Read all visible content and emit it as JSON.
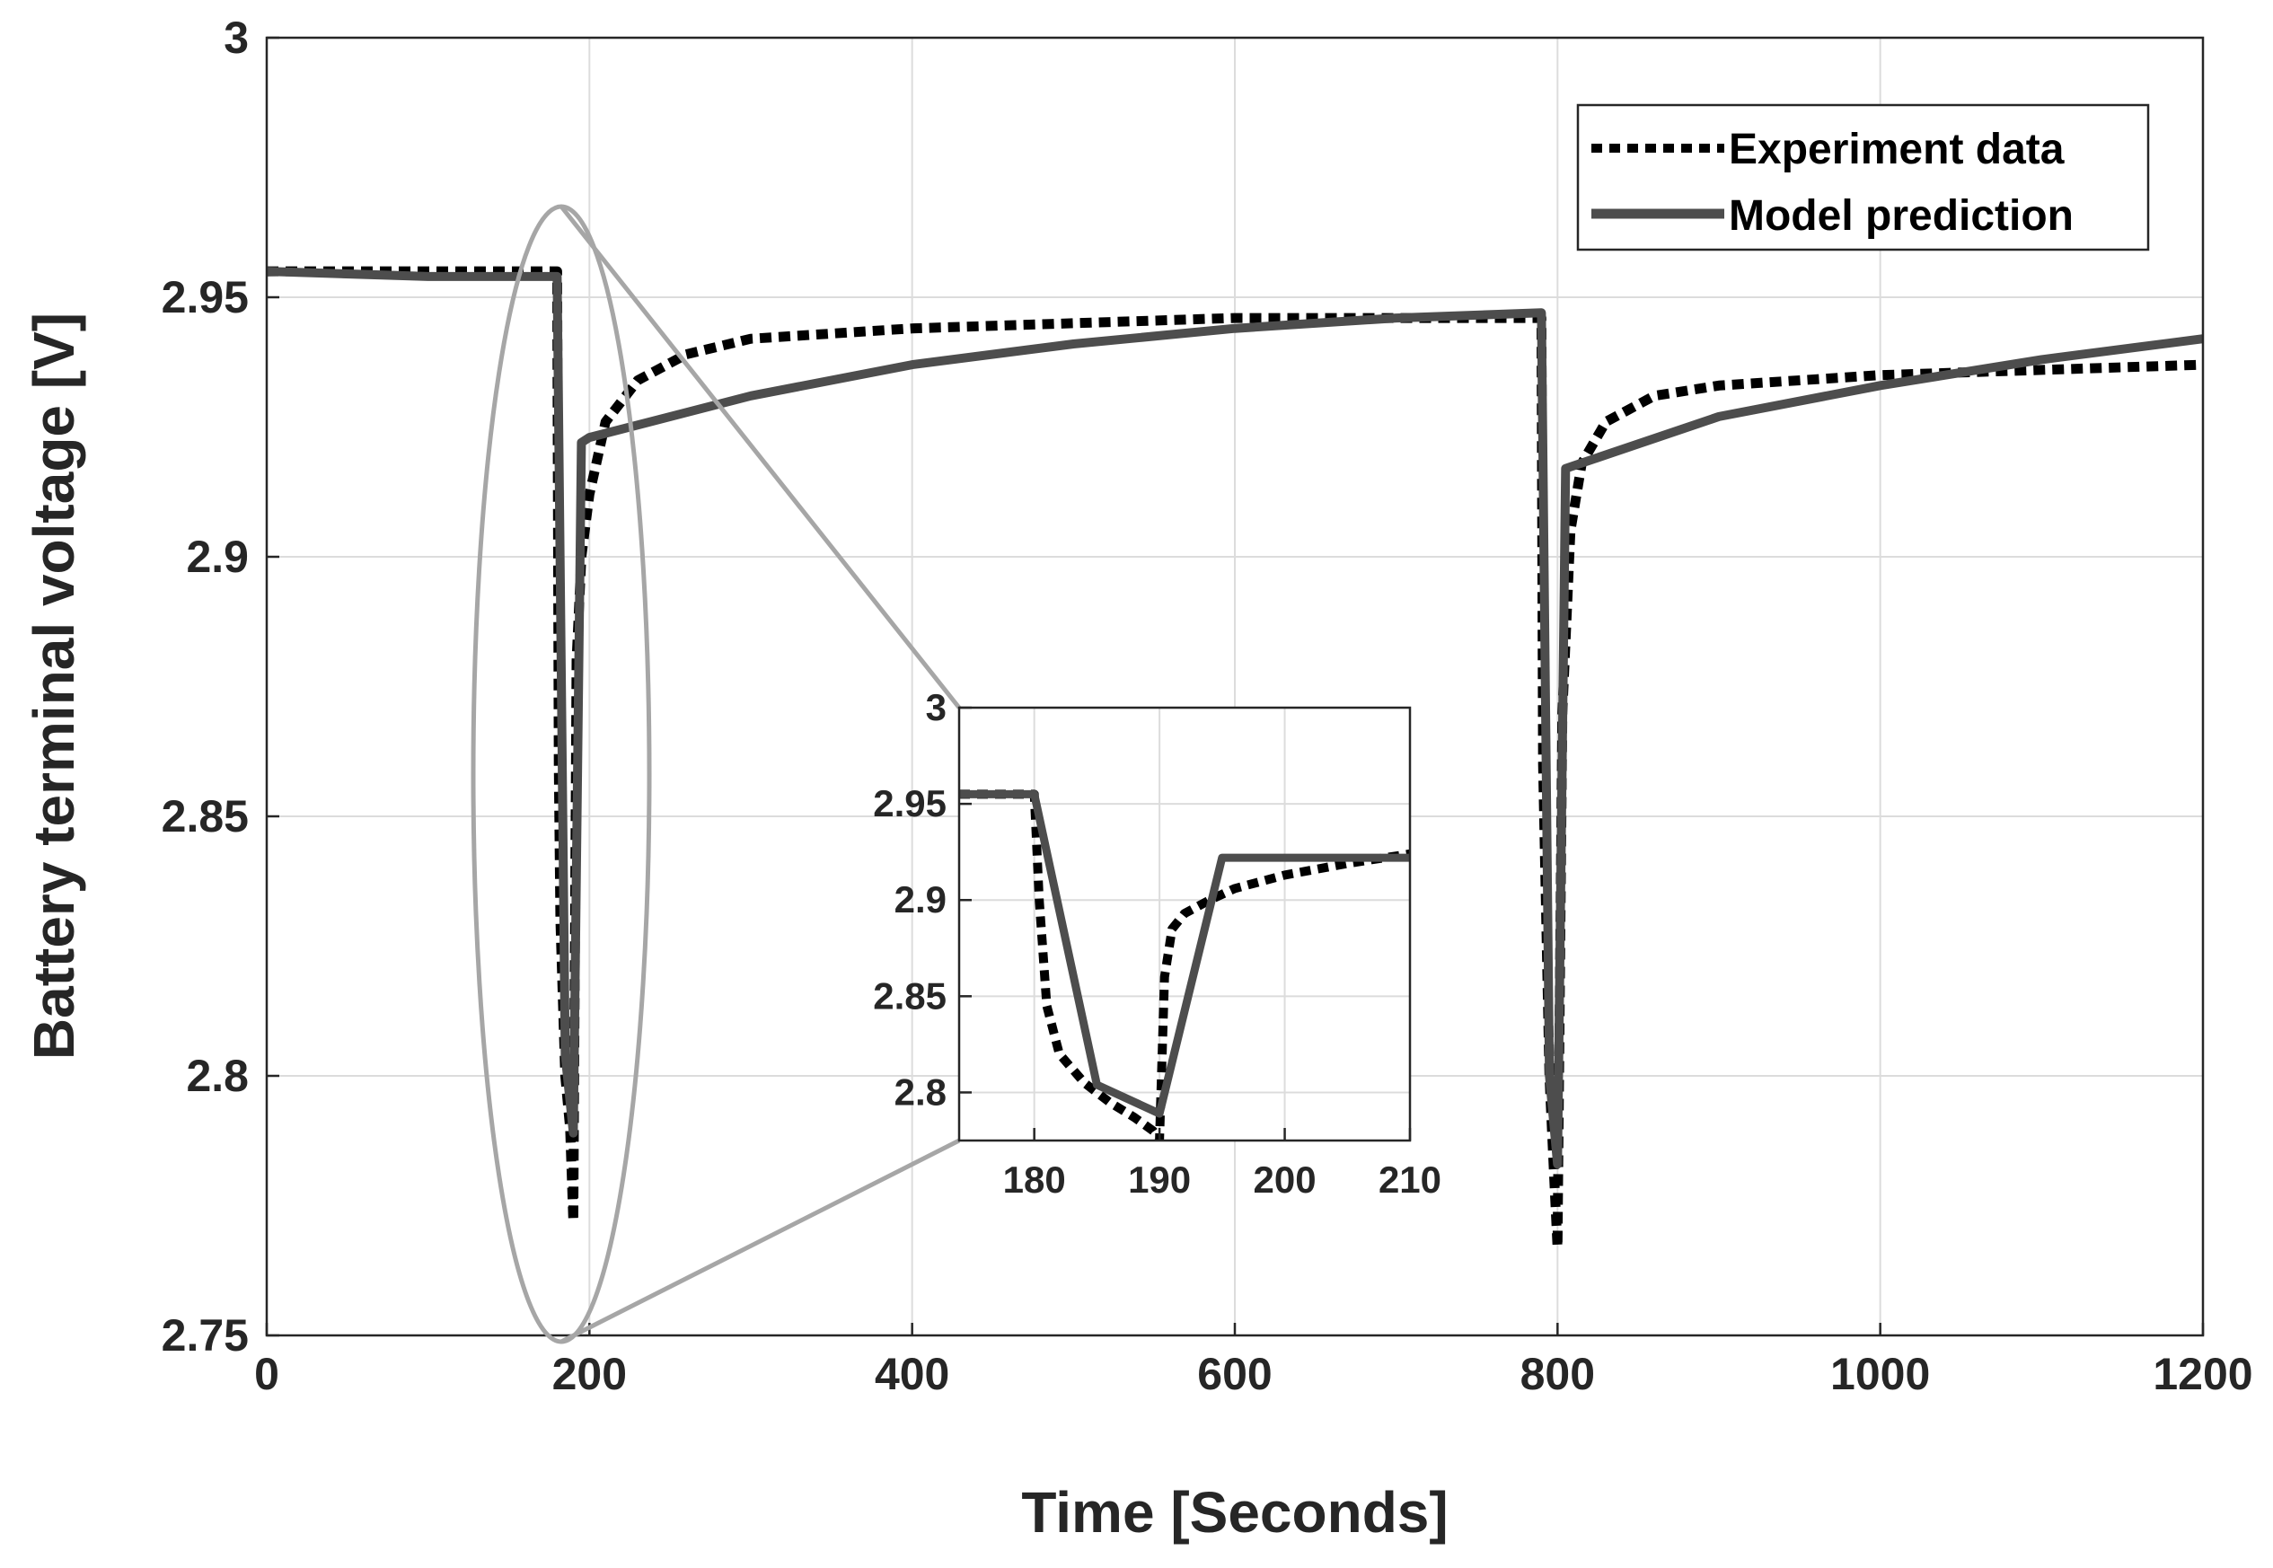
{
  "chart_data": [
    {
      "type": "line",
      "title": "",
      "xlabel": "Time [Seconds]",
      "ylabel": "Battery terminal voltage [V]",
      "xlim": [
        0,
        1200
      ],
      "ylim": [
        2.75,
        3.0
      ],
      "xticks": [
        0,
        200,
        400,
        600,
        800,
        1000,
        1200
      ],
      "xtick_labels": [
        "0",
        "200",
        "400",
        "600",
        "800",
        "1000",
        "1200"
      ],
      "yticks": [
        2.75,
        2.8,
        2.85,
        2.9,
        2.95,
        3.0
      ],
      "ytick_labels": [
        "2.75",
        "2.8",
        "2.85",
        "2.9",
        "2.95",
        "3"
      ],
      "grid": true,
      "legend": {
        "position": "top-right",
        "entries": [
          "Experiment data",
          "Model prediction"
        ]
      },
      "series": [
        {
          "name": "Experiment data",
          "style": "dotted",
          "color": "#000000",
          "x": [
            0,
            100,
            178,
            180,
            181,
            182,
            185,
            188,
            190,
            192,
            195,
            200,
            210,
            230,
            260,
            300,
            400,
            500,
            600,
            700,
            788,
            790,
            791,
            795,
            798,
            800,
            803,
            808,
            815,
            830,
            860,
            900,
            1000,
            1100,
            1200
          ],
          "y": [
            2.955,
            2.955,
            2.955,
            2.955,
            2.86,
            2.83,
            2.8,
            2.79,
            2.772,
            2.88,
            2.9,
            2.912,
            2.926,
            2.934,
            2.939,
            2.942,
            2.944,
            2.945,
            2.946,
            2.946,
            2.946,
            2.946,
            2.86,
            2.8,
            2.78,
            2.767,
            2.87,
            2.905,
            2.918,
            2.926,
            2.931,
            2.933,
            2.935,
            2.936,
            2.937
          ]
        },
        {
          "name": "Model prediction",
          "style": "solid",
          "color": "#4d4d4d",
          "x": [
            0,
            100,
            180,
            185,
            190,
            195,
            200,
            300,
            400,
            500,
            600,
            700,
            790,
            795,
            800,
            805,
            900,
            1000,
            1100,
            1200
          ],
          "y": [
            2.955,
            2.954,
            2.954,
            2.804,
            2.789,
            2.922,
            2.923,
            2.931,
            2.937,
            2.941,
            2.944,
            2.946,
            2.947,
            2.8,
            2.783,
            2.917,
            2.927,
            2.933,
            2.938,
            2.942
          ]
        }
      ]
    },
    {
      "type": "line",
      "title": "",
      "xlabel": "",
      "ylabel": "",
      "xlim": [
        174,
        210
      ],
      "ylim": [
        2.775,
        3.0
      ],
      "xticks": [
        180,
        190,
        200,
        210
      ],
      "xtick_labels": [
        "180",
        "190",
        "200",
        "210"
      ],
      "yticks": [
        2.8,
        2.85,
        2.9,
        2.95,
        3.0
      ],
      "ytick_labels": [
        "2.8",
        "2.85",
        "2.9",
        "2.95",
        "3"
      ],
      "grid": true,
      "series": [
        {
          "name": "Experiment data",
          "style": "dotted",
          "color": "#000000",
          "x": [
            174,
            178,
            180,
            180.4,
            181,
            182,
            184,
            186,
            188,
            189.5,
            190,
            190.4,
            191,
            192,
            194,
            196,
            200,
            205,
            210
          ],
          "y": [
            2.955,
            2.955,
            2.955,
            2.9,
            2.845,
            2.82,
            2.805,
            2.795,
            2.787,
            2.78,
            2.775,
            2.86,
            2.885,
            2.893,
            2.9,
            2.906,
            2.913,
            2.919,
            2.924
          ]
        },
        {
          "name": "Model prediction",
          "style": "solid",
          "color": "#4d4d4d",
          "x": [
            174,
            180,
            185,
            190,
            195,
            200,
            205,
            210
          ],
          "y": [
            2.955,
            2.955,
            2.804,
            2.789,
            2.922,
            2.922,
            2.922,
            2.922
          ]
        }
      ]
    }
  ]
}
